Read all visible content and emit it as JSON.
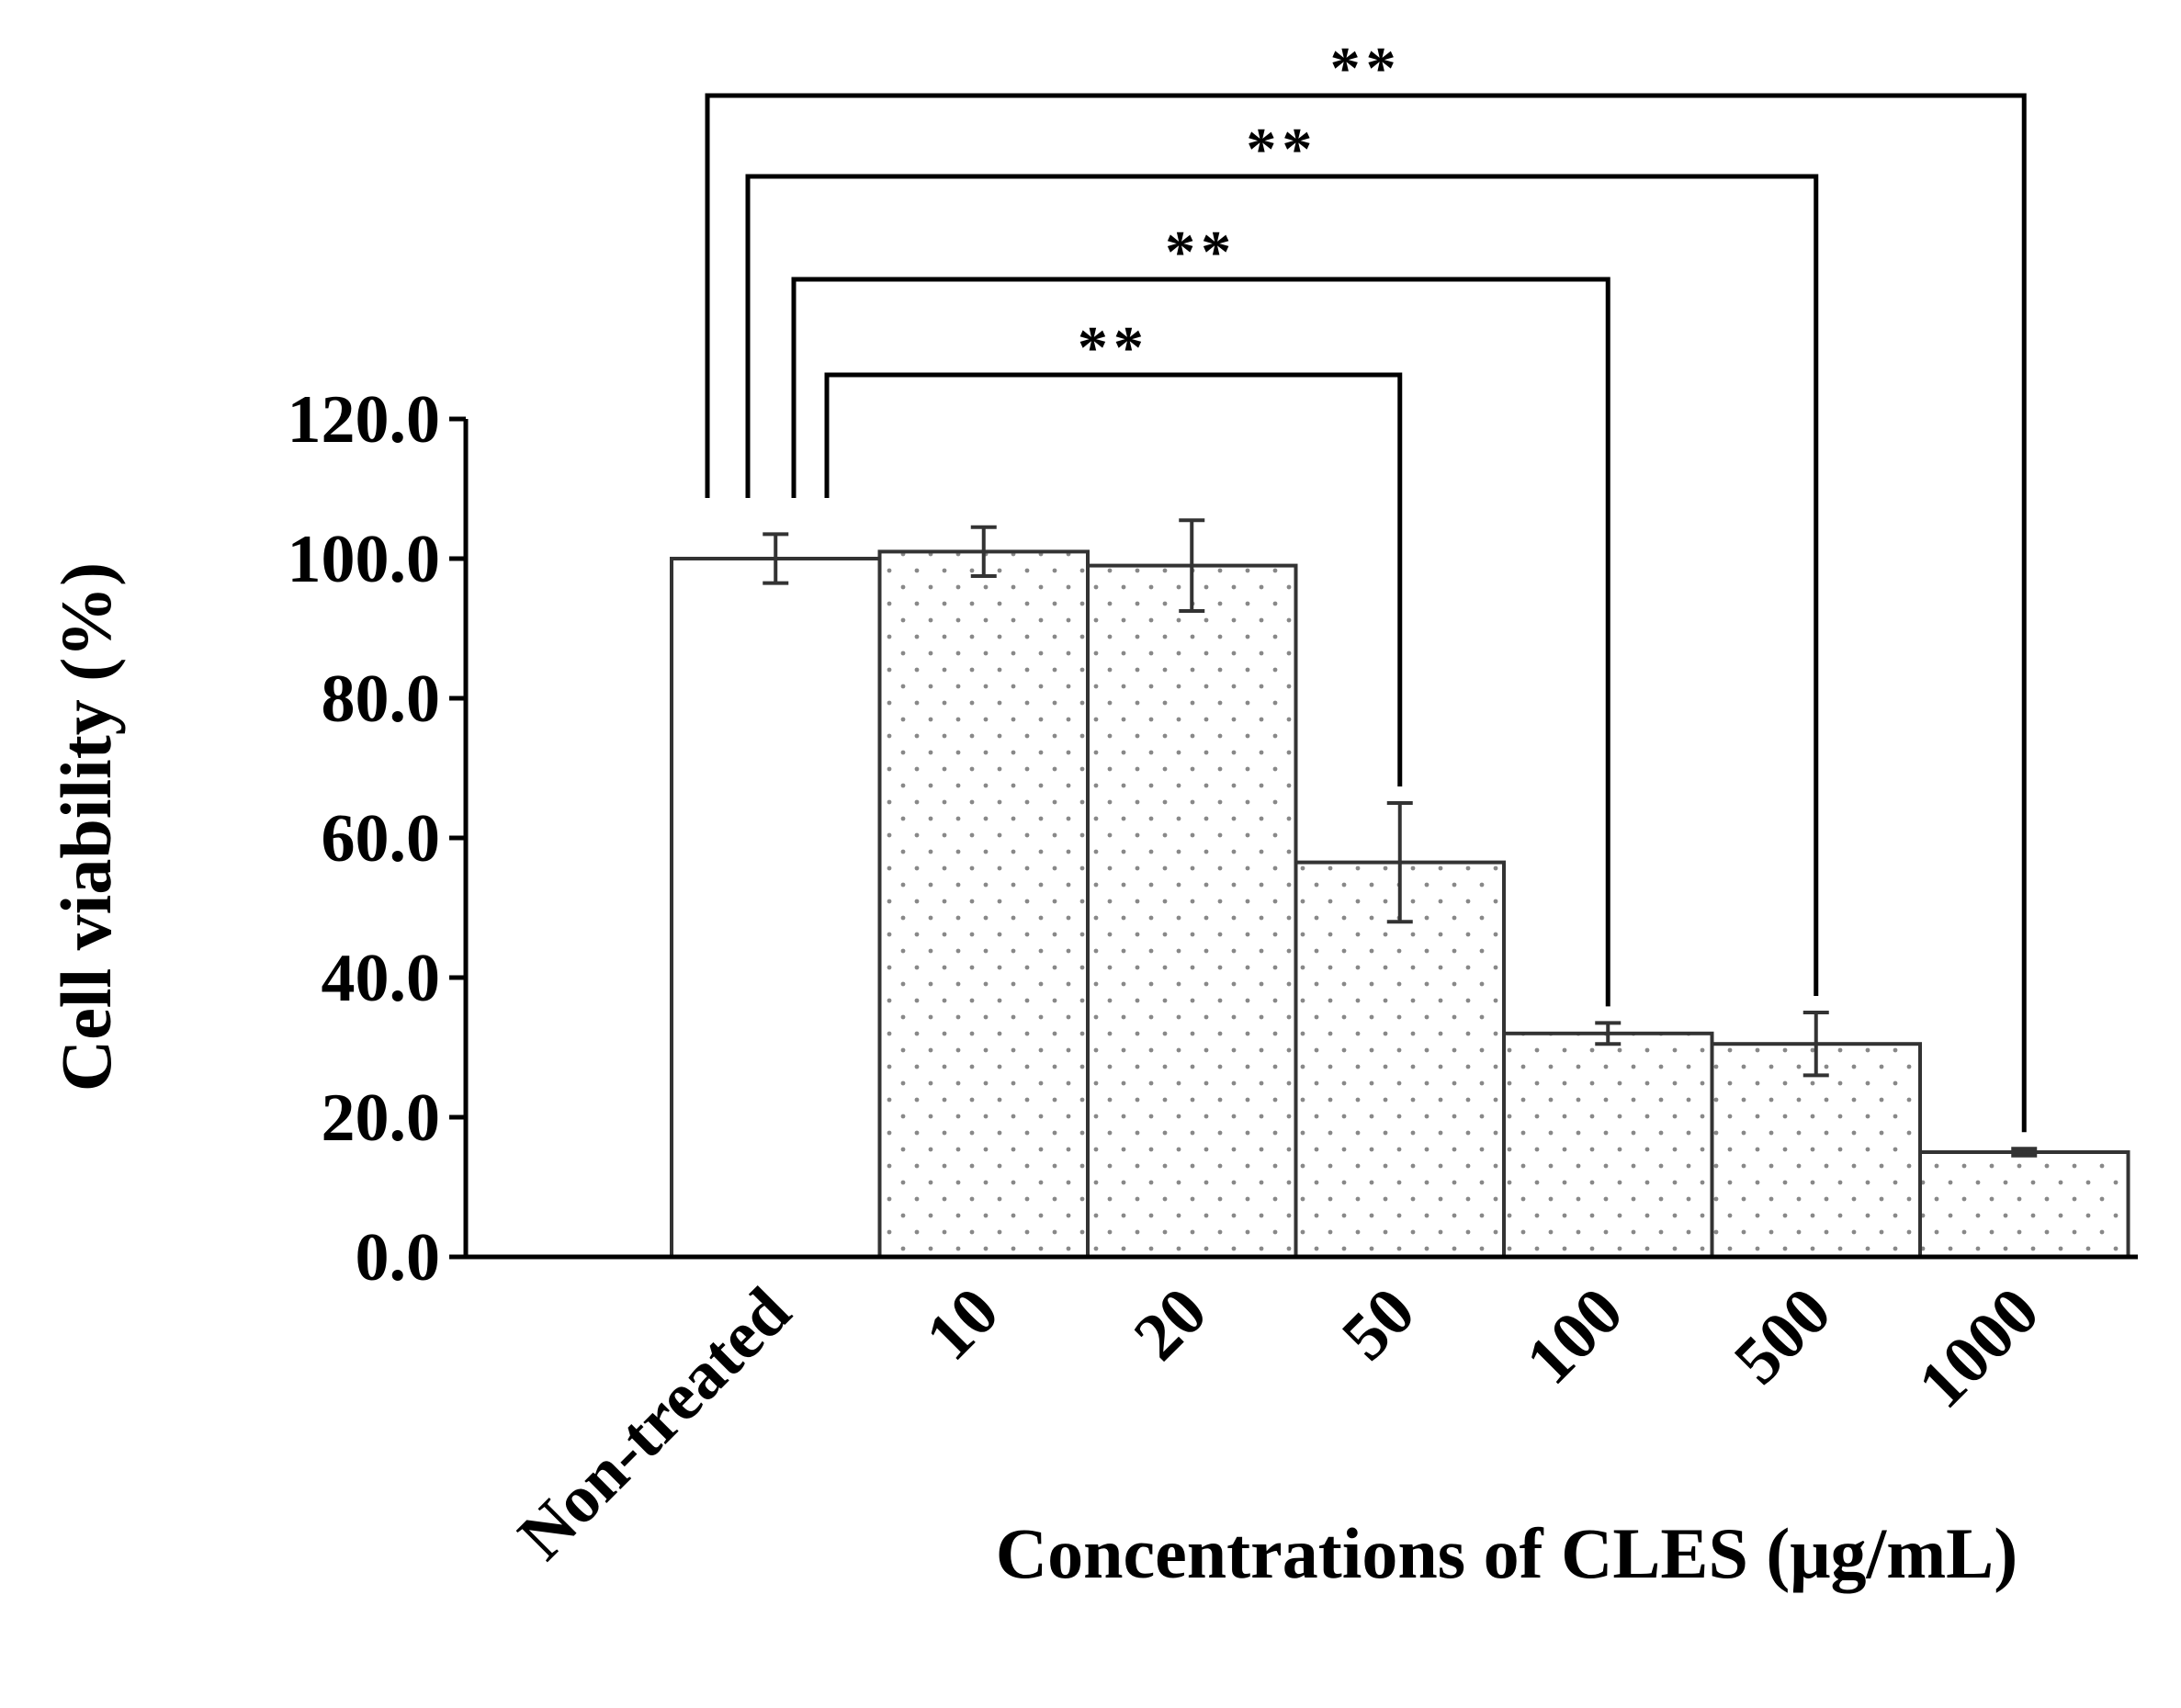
{
  "chart_data": {
    "type": "bar",
    "title": "",
    "xlabel": "Concentrations of CLES (μg/mL)",
    "ylabel": "Cell viability (%)",
    "ylim": [
      0,
      120
    ],
    "yticks": [
      "0.0",
      "20.0",
      "40.0",
      "60.0",
      "80.0",
      "100.0",
      "120.0"
    ],
    "categories": [
      "Non-treated",
      "10",
      "20",
      "50",
      "100",
      "500",
      "1000"
    ],
    "values": [
      100.0,
      101.0,
      99.0,
      56.5,
      32.0,
      30.5,
      15.0
    ],
    "errors": [
      3.5,
      3.5,
      6.5,
      8.5,
      1.5,
      4.5,
      0.5
    ],
    "fills": [
      "plain",
      "dotted",
      "dotted",
      "dotted",
      "dotted",
      "dotted",
      "dotted"
    ],
    "significance": [
      {
        "from": "Non-treated",
        "to": "50",
        "label": "**"
      },
      {
        "from": "Non-treated",
        "to": "100",
        "label": "**"
      },
      {
        "from": "Non-treated",
        "to": "500",
        "label": "**"
      },
      {
        "from": "Non-treated",
        "to": "1000",
        "label": "**"
      }
    ]
  },
  "colors": {
    "bar_fill": "#ffffff",
    "bar_stroke": "#333333",
    "dot": "#888888",
    "axis": "#000000",
    "bracket": "#000000",
    "error_bar": "#333333"
  }
}
